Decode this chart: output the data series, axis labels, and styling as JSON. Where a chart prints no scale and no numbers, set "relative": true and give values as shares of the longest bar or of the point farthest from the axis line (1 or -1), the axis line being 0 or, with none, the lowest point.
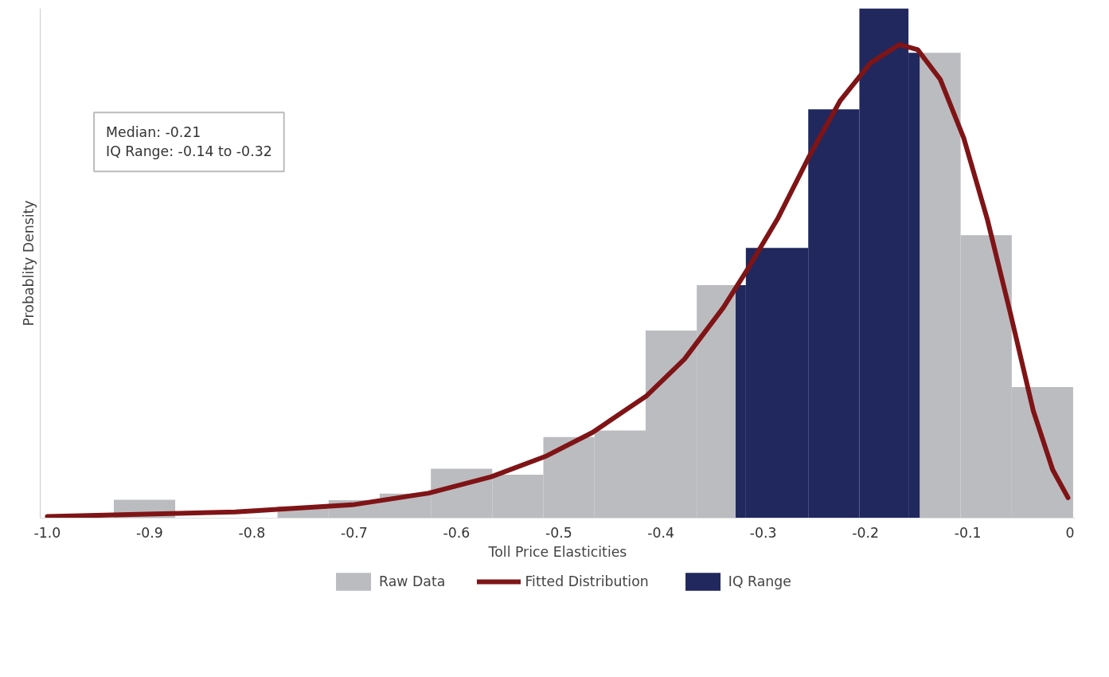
{
  "chart_data": {
    "type": "histogram",
    "relative": true,
    "xlabel": "Toll Price Elasticities",
    "ylabel": "Probablity Density",
    "annotations": [
      "Median:    -0.21",
      "IQ Range: -0.14 to -0.32"
    ],
    "bins": [
      -0.935,
      -0.875,
      -0.775,
      -0.725,
      -0.675,
      -0.625,
      -0.565,
      -0.515,
      -0.465,
      -0.415,
      -0.365,
      -0.327,
      -0.317,
      -0.256,
      -0.206,
      -0.158,
      -0.147,
      -0.107,
      -0.057,
      0.003
    ],
    "series": [
      {
        "name": "Raw Data",
        "color": "#bbbcc0",
        "values": [
          0.036,
          0,
          0.023,
          0.035,
          0.048,
          0.097,
          0.085,
          0.159,
          0.172,
          0.368,
          0.457,
          null,
          null,
          null,
          null,
          null,
          0.913,
          0.555,
          0.257
        ]
      },
      {
        "name": "Fitted Distribution",
        "type": "line",
        "color": "#7f1416",
        "x": [
          -1.0,
          -0.816,
          -0.702,
          -0.627,
          -0.566,
          -0.513,
          -0.467,
          -0.414,
          -0.377,
          -0.339,
          -0.316,
          -0.286,
          -0.255,
          -0.225,
          -0.195,
          -0.167,
          -0.149,
          -0.127,
          -0.104,
          -0.081,
          -0.058,
          -0.036,
          -0.017,
          -0.002
        ],
        "values": [
          0.003,
          0.012,
          0.026,
          0.049,
          0.081,
          0.121,
          0.168,
          0.24,
          0.312,
          0.413,
          0.486,
          0.587,
          0.71,
          0.818,
          0.893,
          0.929,
          0.919,
          0.861,
          0.746,
          0.587,
          0.399,
          0.211,
          0.095,
          0.04
        ]
      },
      {
        "name": "IQ Range",
        "color": "#20285e",
        "values": [
          null,
          null,
          null,
          null,
          null,
          null,
          null,
          null,
          null,
          null,
          null,
          0.457,
          0.53,
          0.802,
          1,
          0.913,
          null,
          null,
          null
        ]
      }
    ],
    "xlim": [
      -1.007,
      0.005
    ],
    "xticks": [
      {
        "value": -1.0,
        "label": "-1.0"
      },
      -0.9,
      -0.8,
      -0.7,
      -0.6,
      -0.5,
      -0.4,
      -0.3,
      -0.2,
      -0.1,
      0
    ],
    "legend": "bottom",
    "grid": false,
    "line_style": "solid",
    "marker": "none"
  }
}
